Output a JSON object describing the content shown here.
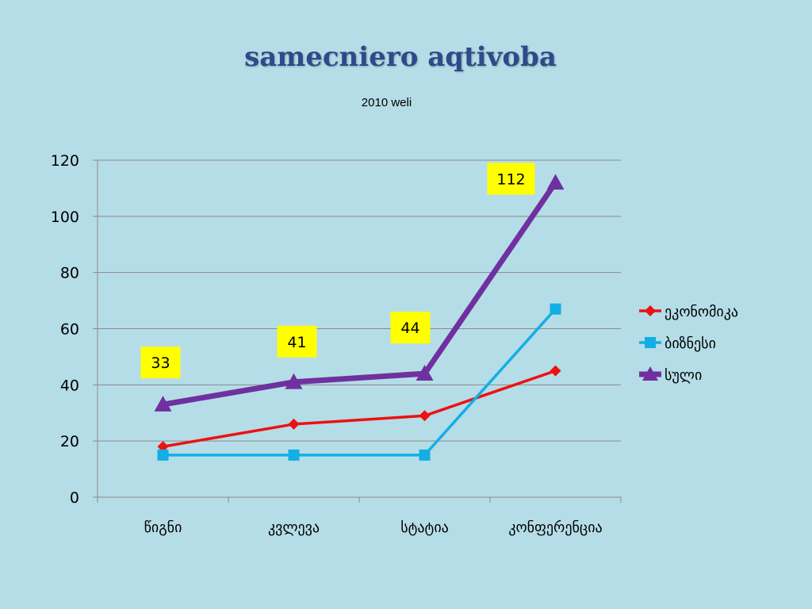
{
  "slide": {
    "title": "samecniero aqtivoba",
    "subtitle": "2010 weli"
  },
  "chart_data": {
    "type": "line",
    "title": "samecniero aqtivoba",
    "subtitle": "2010 weli",
    "categories": [
      "წიგნი",
      "კვლევა",
      "სტატია",
      "კონფერენცია"
    ],
    "ylim": [
      0,
      120
    ],
    "yticks": [
      0,
      20,
      40,
      60,
      80,
      100,
      120
    ],
    "grid": true,
    "legend_position": "right",
    "series": [
      {
        "name": "ეკონომიკა",
        "values": [
          18,
          26,
          29,
          45
        ],
        "color": "#ee1111",
        "marker": "diamond"
      },
      {
        "name": "ბიზნესი",
        "values": [
          15,
          15,
          15,
          67
        ],
        "color": "#13aee6",
        "marker": "square"
      },
      {
        "name": "სული",
        "values": [
          33,
          41,
          44,
          112
        ],
        "color": "#7030a0",
        "marker": "triangle",
        "data_labels": [
          "33",
          "41",
          "44",
          "112"
        ]
      }
    ],
    "label_color": "#ffff00"
  }
}
